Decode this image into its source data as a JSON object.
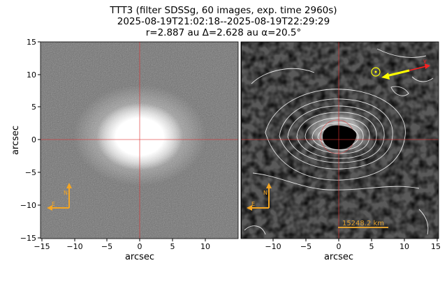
{
  "title": {
    "line1": "TTT3 (filter SDSSg, 60 images, exp. time 2960s)",
    "line2": "2025-08-19T21:02:18--2025-08-19T22:29:29",
    "line3": "r=2.887 au Δ=2.628 au α=20.5°"
  },
  "left_panel": {
    "xlabel": "arcsec",
    "ylabel": "arcsec",
    "x_ticks": [
      "−15",
      "−10",
      "−5",
      "0",
      "5",
      "10"
    ],
    "y_ticks": [
      "15",
      "10",
      "5",
      "0",
      "−5",
      "−10",
      "−15"
    ],
    "compass": {
      "north": "N",
      "east": "E"
    }
  },
  "right_panel": {
    "xlabel": "arcsec",
    "x_ticks": [
      "−10",
      "−5",
      "0",
      "5",
      "10",
      "15"
    ],
    "scale_bar_label": "15248.2 km",
    "compass": {
      "north": "N",
      "east": "E"
    },
    "vector_label": "v"
  },
  "colors": {
    "crosshair": "#e03030",
    "compass": "#f5a623",
    "scale_bar": "#e0a030",
    "sun_vector": "#ffff00",
    "velocity_vector": "#ff2020"
  }
}
